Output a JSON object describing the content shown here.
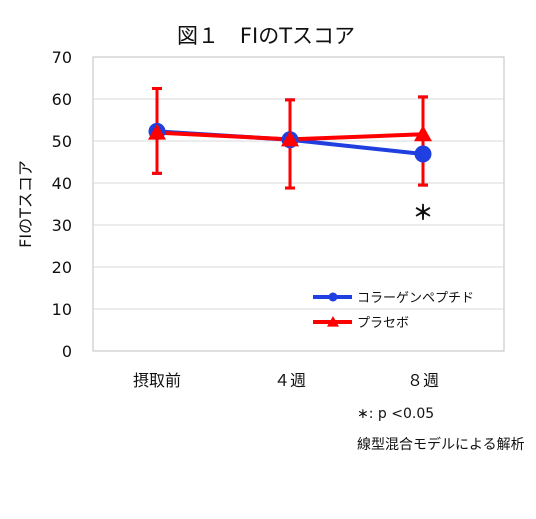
{
  "chart_data": {
    "type": "line",
    "title": "図１　FIのTスコア",
    "ylabel": "FIのTスコア",
    "xlabel": "",
    "categories": [
      "摂取前",
      "４週",
      "８週"
    ],
    "ylim": [
      0,
      70
    ],
    "yticks": [
      0,
      10,
      20,
      30,
      40,
      50,
      60,
      70
    ],
    "grid": true,
    "legend_position": "bottom-right",
    "series": [
      {
        "name": "コラーゲンペプチド",
        "color": "#1f3fe0",
        "marker": "circle",
        "values": [
          52.3,
          50.3,
          46.9
        ],
        "err_low": [
          42.3,
          38.8,
          39.5
        ],
        "err_high": [
          62.5,
          59.8,
          60.5
        ]
      },
      {
        "name": "プラセボ",
        "color": "#ff0000",
        "marker": "triangle",
        "values": [
          52.0,
          50.4,
          51.6
        ],
        "err_low": [
          42.3,
          38.8,
          39.5
        ],
        "err_high": [
          62.5,
          59.8,
          60.5
        ]
      }
    ],
    "annotations": [
      {
        "text": "＊",
        "category": "８週",
        "y": 33
      }
    ]
  },
  "footnotes": {
    "significance": "∗: p <0.05",
    "method": "線型混合モデルによる解析"
  }
}
